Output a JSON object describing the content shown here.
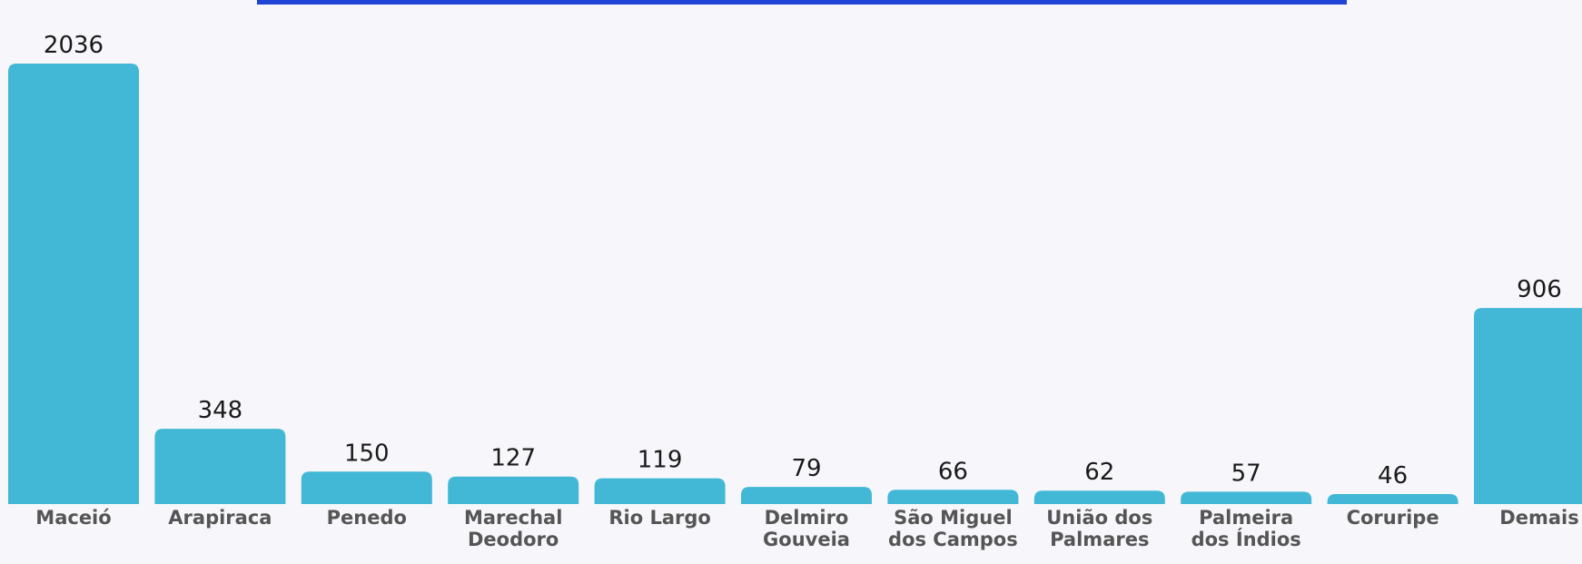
{
  "chart_data": {
    "type": "bar",
    "categories": [
      "Maceió",
      "Arapiraca",
      "Penedo",
      "Marechal Deodoro",
      "Rio Largo",
      "Delmiro Gouveia",
      "São Miguel dos Campos",
      "União dos Palmares",
      "Palmeira dos Índios",
      "Coruripe",
      "Demais"
    ],
    "values": [
      2036,
      348,
      150,
      127,
      119,
      79,
      66,
      62,
      57,
      46,
      906
    ],
    "color": "#42b8d6"
  }
}
